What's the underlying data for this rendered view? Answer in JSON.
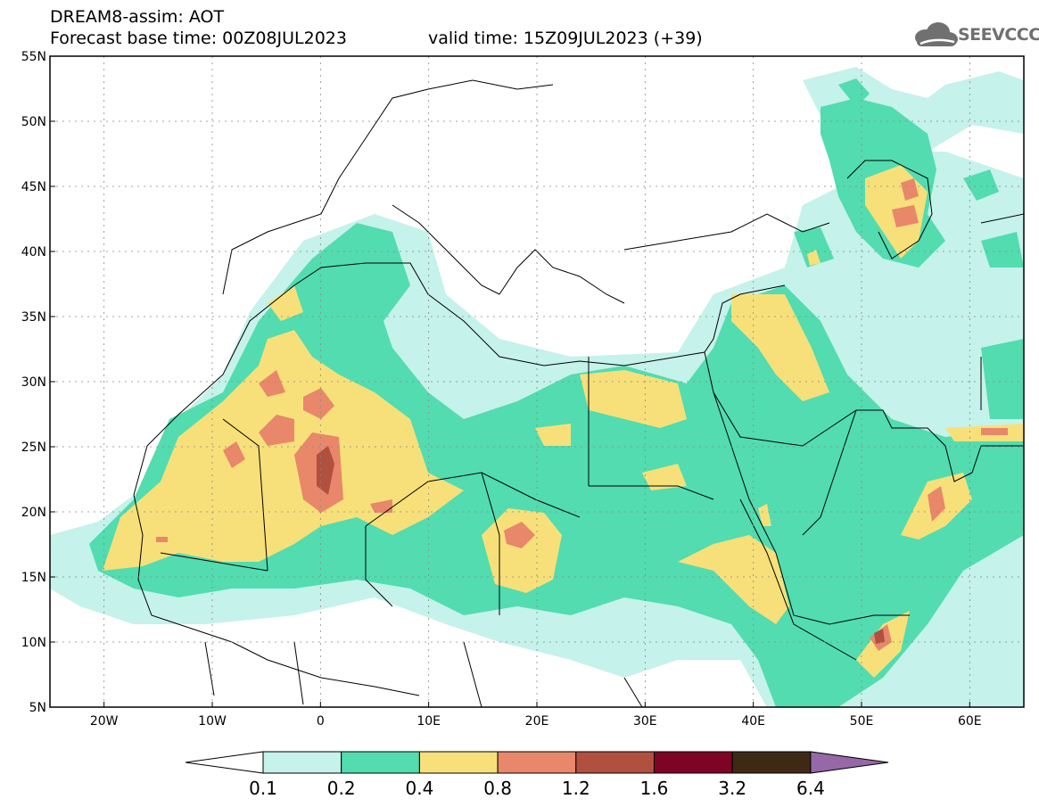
{
  "header": {
    "title": "DREAM8-assim: AOT",
    "base_time_label": "Forecast base time: 00Z08JUL2023",
    "valid_time_label": "valid time: 15Z09JUL2023 (+39)"
  },
  "logo": {
    "text": "SEEVCCC",
    "icon": "cloud-icon"
  },
  "map": {
    "projection": "cylindrical",
    "lon_range": [
      -25,
      65
    ],
    "lat_range": [
      5,
      55
    ],
    "lat_ticks": [
      "5N",
      "10N",
      "15N",
      "20N",
      "25N",
      "30N",
      "35N",
      "40N",
      "45N",
      "50N",
      "55N"
    ],
    "lon_ticks": [
      "20W",
      "10W",
      "0",
      "10E",
      "20E",
      "30E",
      "40E",
      "50E",
      "60E"
    ],
    "grid": true
  },
  "colorbar": {
    "levels": [
      "0.1",
      "0.2",
      "0.4",
      "0.8",
      "1.2",
      "1.6",
      "3.2",
      "6.4"
    ],
    "colors": [
      "#c5f2ea",
      "#52dcb0",
      "#f7e07a",
      "#e8876a",
      "#b0503e",
      "#7e0426",
      "#3e2a14",
      "#9668a8"
    ],
    "under_color": "#ffffff"
  }
}
